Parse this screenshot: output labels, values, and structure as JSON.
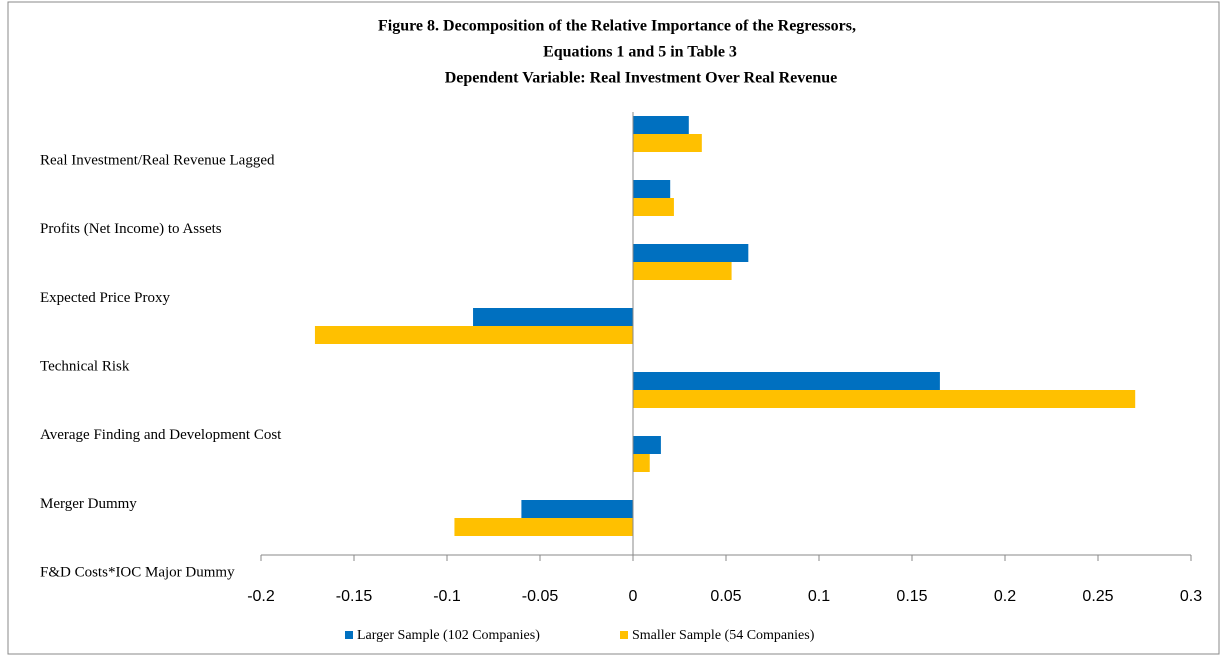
{
  "chart_data": {
    "type": "bar",
    "orientation": "horizontal",
    "title": [
      "Figure 8. Decomposition of the Relative Importance of the Regressors,",
      "Equations 1 and 5 in Table 3",
      "Dependent Variable: Real Investment Over Real Revenue"
    ],
    "categories": [
      "Real Investment/Real Revenue Lagged",
      "Profits (Net Income) to Assets",
      "Expected Price Proxy",
      "Technical Risk",
      "Average Finding and Development Cost",
      "Merger Dummy",
      "F&D Costs*IOC Major Dummy"
    ],
    "series": [
      {
        "name": "Larger Sample (102 Companies)",
        "color": "#0070c0",
        "values": [
          0.03,
          0.02,
          0.062,
          -0.086,
          0.165,
          0.015,
          -0.06
        ]
      },
      {
        "name": "Smaller Sample (54 Companies)",
        "color": "#ffc000",
        "values": [
          0.037,
          0.022,
          0.053,
          -0.171,
          0.27,
          0.009,
          -0.096
        ]
      }
    ],
    "xlim": [
      -0.2,
      0.3
    ],
    "xticks": [
      -0.2,
      -0.15,
      -0.1,
      -0.05,
      0,
      0.05,
      0.1,
      0.15,
      0.2,
      0.25,
      0.3
    ],
    "legend": "bottom"
  }
}
